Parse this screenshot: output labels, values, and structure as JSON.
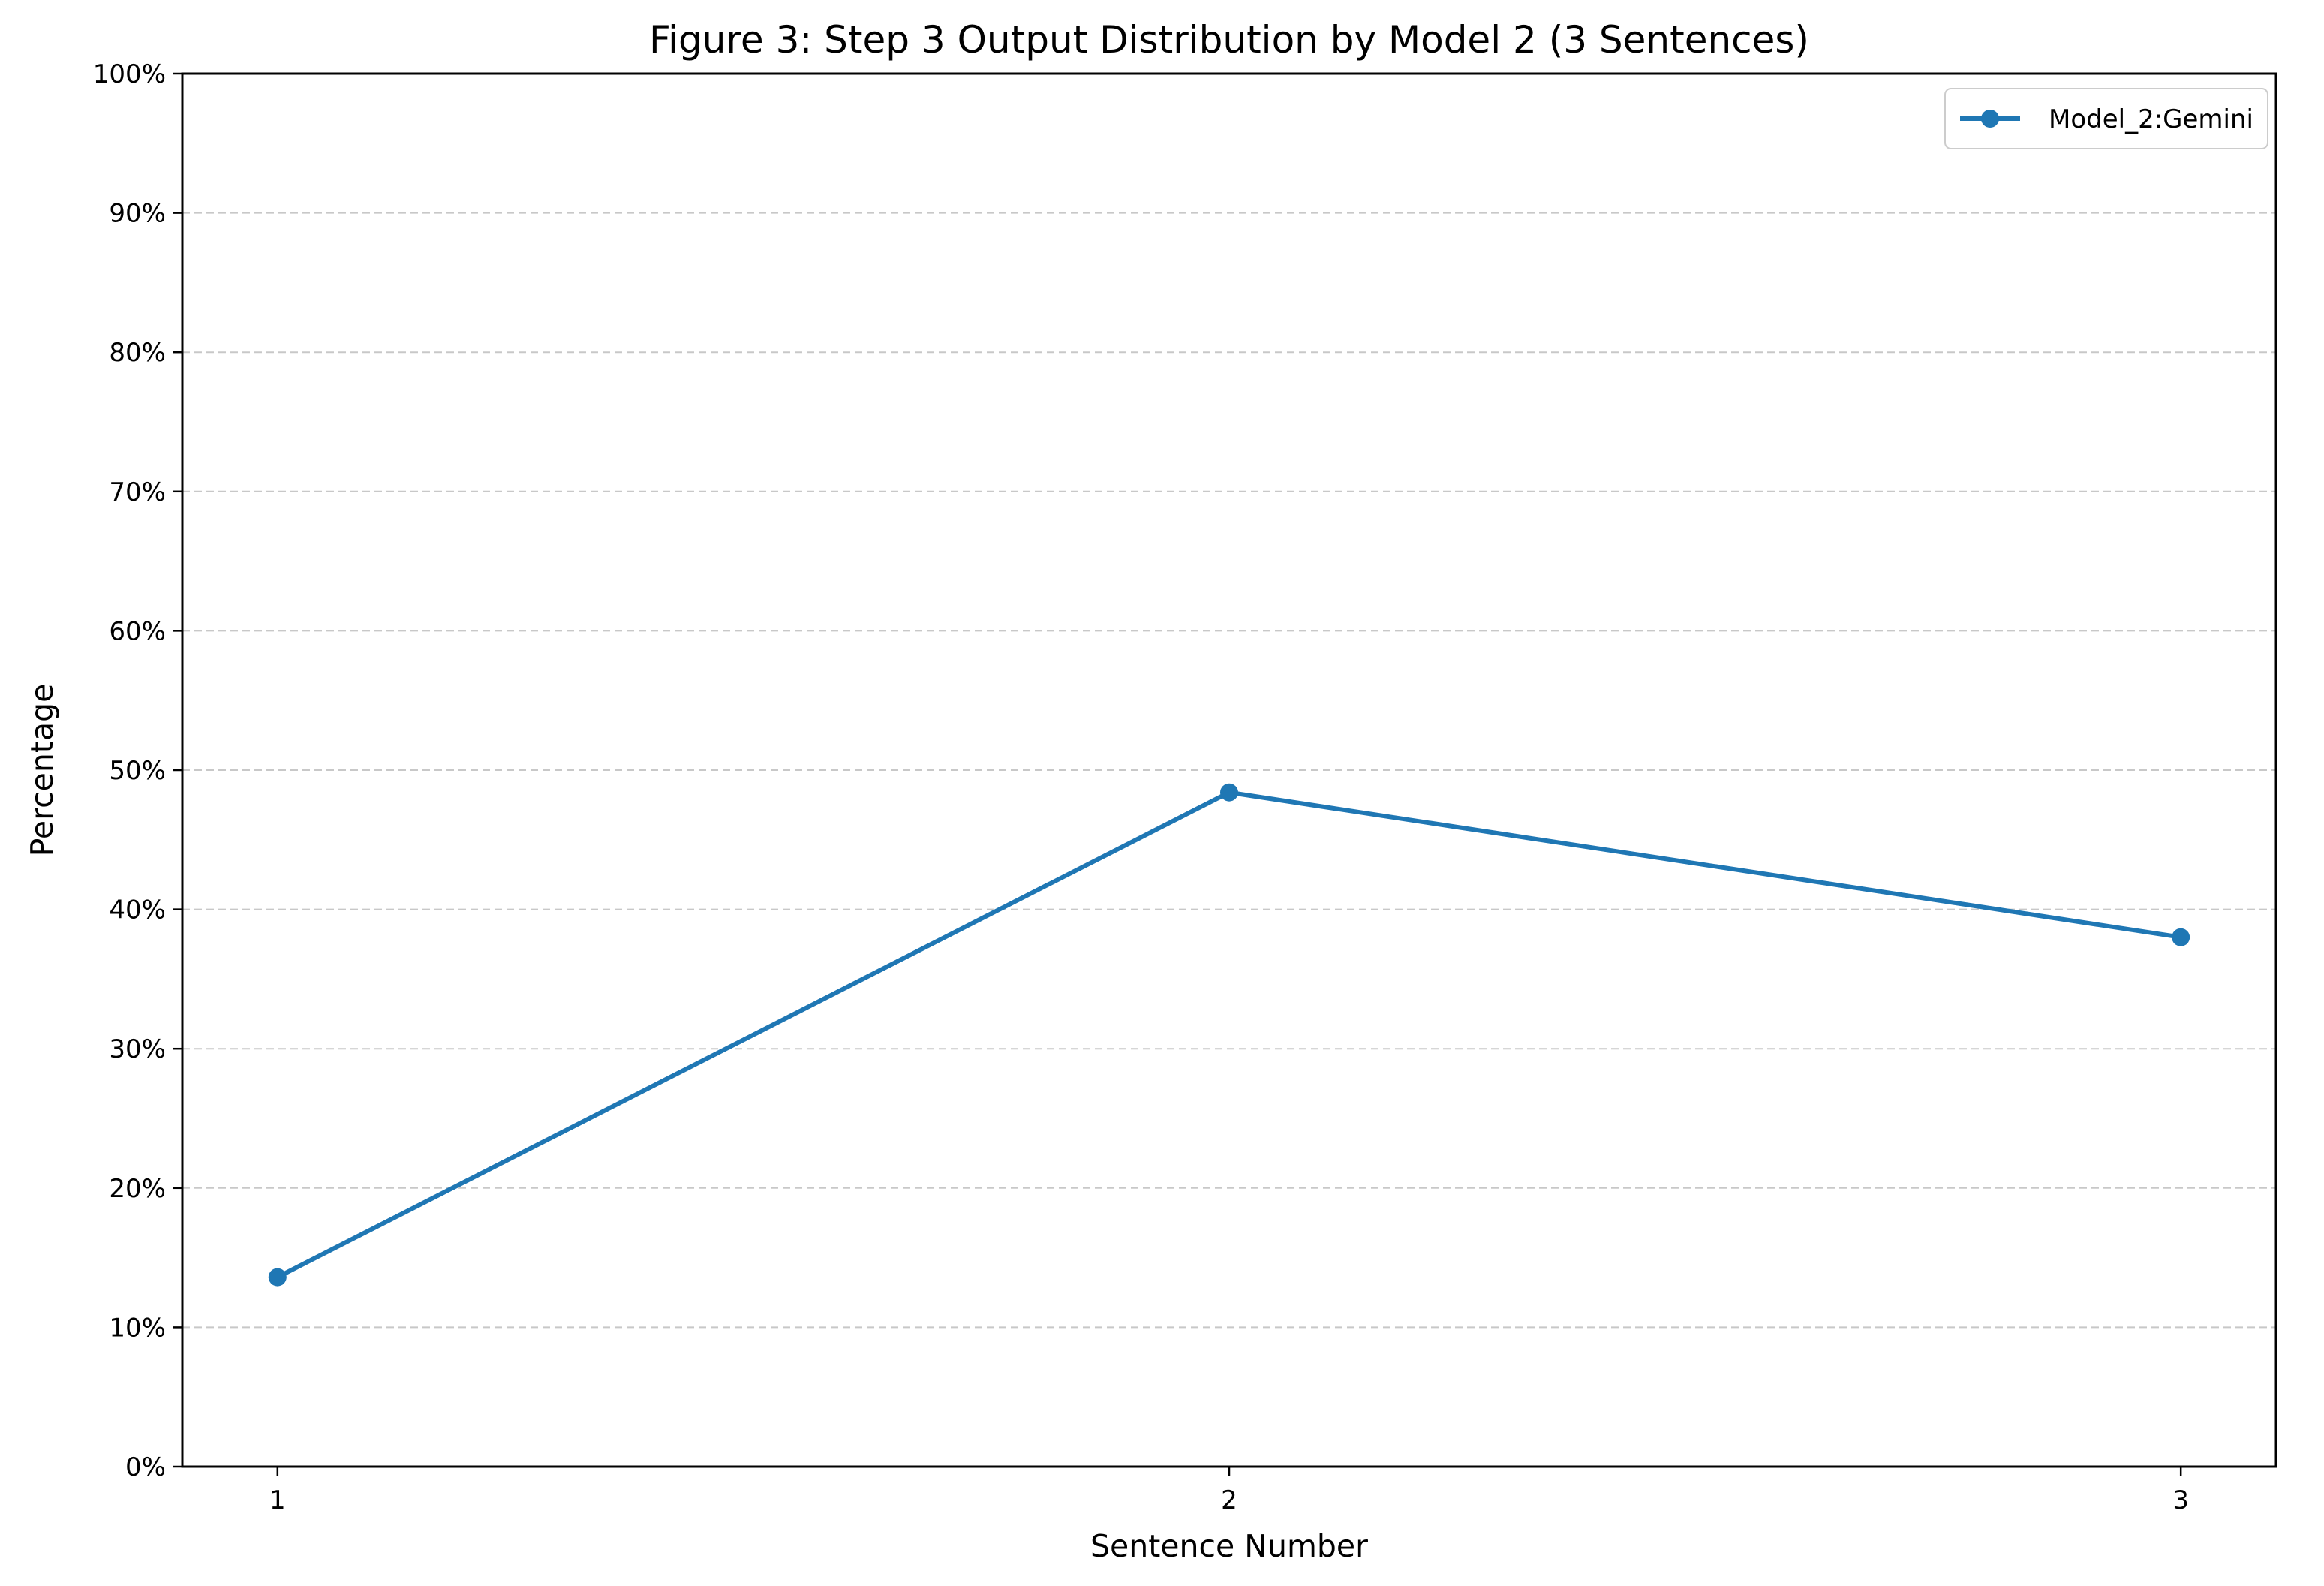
{
  "chart_data": {
    "type": "line",
    "title": "Figure 3: Step 3 Output Distribution by Model 2 (3 Sentences)",
    "xlabel": "Sentence Number",
    "ylabel": "Percentage",
    "x": [
      1,
      2,
      3
    ],
    "x_tick_labels": [
      "1",
      "2",
      "3"
    ],
    "xlim": [
      0.9,
      3.1
    ],
    "ylim": [
      0,
      100
    ],
    "y_ticks": [
      0,
      10,
      20,
      30,
      40,
      50,
      60,
      70,
      80,
      90,
      100
    ],
    "y_tick_labels": [
      "0%",
      "10%",
      "20%",
      "30%",
      "40%",
      "50%",
      "60%",
      "70%",
      "80%",
      "90%",
      "100%"
    ],
    "grid": "horizontal dashed",
    "legend_position": "top-right",
    "series": [
      {
        "name": "Model_2:Gemini",
        "values": [
          13.6,
          48.4,
          38.0
        ],
        "color": "#1f77b4"
      }
    ]
  }
}
